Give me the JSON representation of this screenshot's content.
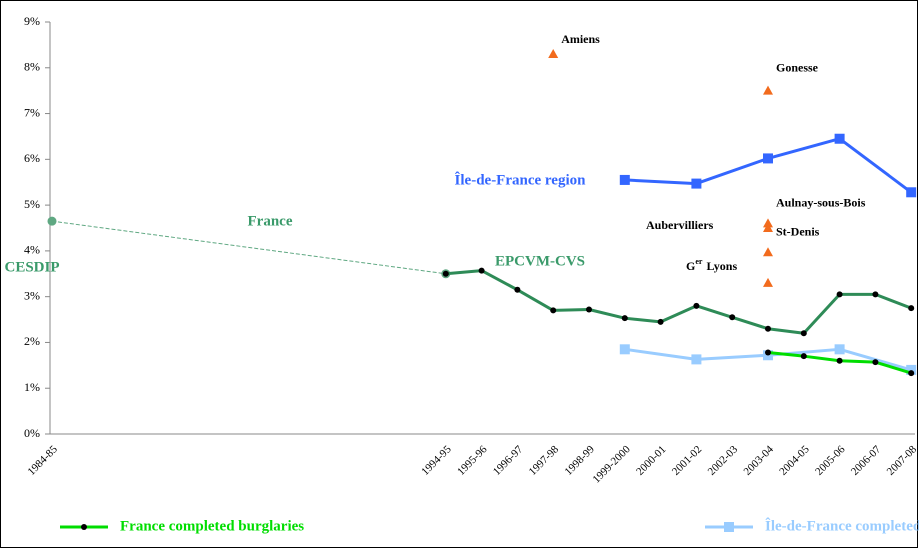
{
  "chart_data": {
    "type": "line",
    "categories": [
      "1984-85",
      null,
      null,
      null,
      null,
      null,
      null,
      null,
      null,
      null,
      null,
      "1994-95",
      "1995-96",
      "1996-97",
      "1997-98",
      "1998-99",
      "1999-2000",
      "2000-01",
      "2001-02",
      "2002-03",
      "2003-04",
      "2004-05",
      "2005-06",
      "2006-07",
      "2007-08"
    ],
    "ylim": [
      0,
      9
    ],
    "yticks": [
      {
        "value": 0,
        "label": "0%"
      },
      {
        "value": 1,
        "label": "1%"
      },
      {
        "value": 2,
        "label": "2%"
      },
      {
        "value": 3,
        "label": "3%"
      },
      {
        "value": 4,
        "label": "4%"
      },
      {
        "value": 5,
        "label": "5%"
      },
      {
        "value": 6,
        "label": "6%"
      },
      {
        "value": 7,
        "label": "7%"
      },
      {
        "value": 8,
        "label": "8%"
      },
      {
        "value": 9,
        "label": "9%"
      }
    ],
    "grid": false,
    "legend": "bottom",
    "series": [
      {
        "color": "#5fa882",
        "dashed": true,
        "marker": "circle",
        "connect_gaps": true,
        "values": [
          4.65,
          null,
          null,
          null,
          null,
          null,
          null,
          null,
          null,
          null,
          null,
          3.5,
          null,
          null,
          null,
          null,
          null,
          null,
          null,
          null,
          null,
          null,
          null,
          null,
          null
        ]
      },
      {
        "color": "#2e8b57",
        "marker": "dot",
        "connect_gaps": true,
        "values": [
          null,
          null,
          null,
          null,
          null,
          null,
          null,
          null,
          null,
          null,
          null,
          3.5,
          3.57,
          3.15,
          2.7,
          2.72,
          2.53,
          2.45,
          2.8,
          2.55,
          2.3,
          2.2,
          3.05,
          3.05,
          2.75
        ]
      },
      {
        "color": "#3366ff",
        "marker": "square",
        "connect_gaps": true,
        "values": [
          null,
          null,
          null,
          null,
          null,
          null,
          null,
          null,
          null,
          null,
          null,
          null,
          null,
          null,
          null,
          null,
          5.55,
          null,
          5.47,
          null,
          6.02,
          null,
          6.45,
          null,
          5.28
        ]
      },
      {
        "name": "Île-de-France completed burglaries",
        "color": "#99ccff",
        "marker": "square",
        "connect_gaps": true,
        "values": [
          null,
          null,
          null,
          null,
          null,
          null,
          null,
          null,
          null,
          null,
          null,
          null,
          null,
          null,
          null,
          null,
          1.85,
          null,
          1.63,
          null,
          1.72,
          null,
          1.85,
          null,
          1.4
        ]
      },
      {
        "name": "France completed burglaries",
        "color": "#00dd00",
        "marker": "dot",
        "connect_gaps": true,
        "values": [
          null,
          null,
          null,
          null,
          null,
          null,
          null,
          null,
          null,
          null,
          null,
          null,
          null,
          null,
          null,
          null,
          null,
          null,
          null,
          null,
          1.78,
          1.7,
          1.6,
          1.57,
          1.33
        ]
      }
    ],
    "points": [
      {
        "label": "Amiens",
        "x": "1997-98",
        "value": 8.3,
        "color": "#f26b1d"
      },
      {
        "label": "Gonesse",
        "x": "2003-04",
        "value": 7.5,
        "color": "#f26b1d"
      },
      {
        "label": "Aulnay-sous-Bois",
        "x": "2003-04",
        "value": 4.6,
        "color": "#f26b1d"
      },
      {
        "label": "Aubervilliers",
        "x": "2003-04",
        "value": 4.5,
        "color": "#f26b1d"
      },
      {
        "label": "St-Denis",
        "x": "2003-04",
        "value": 3.97,
        "color": "#f26b1d"
      },
      {
        "label": "G",
        "label_sup": "er",
        "label_rest": "Lyons",
        "x": "2003-04",
        "value": 3.3,
        "color": "#f26b1d"
      }
    ],
    "annotations": [
      {
        "text": "France",
        "color": "#3a9a6a"
      },
      {
        "text": "EPCVM-CVS",
        "color": "#3a9a6a"
      },
      {
        "text": "CESDIP",
        "color": "#3a9a6a"
      },
      {
        "text": "Île-de-France region",
        "color": "#3366ff"
      }
    ]
  }
}
